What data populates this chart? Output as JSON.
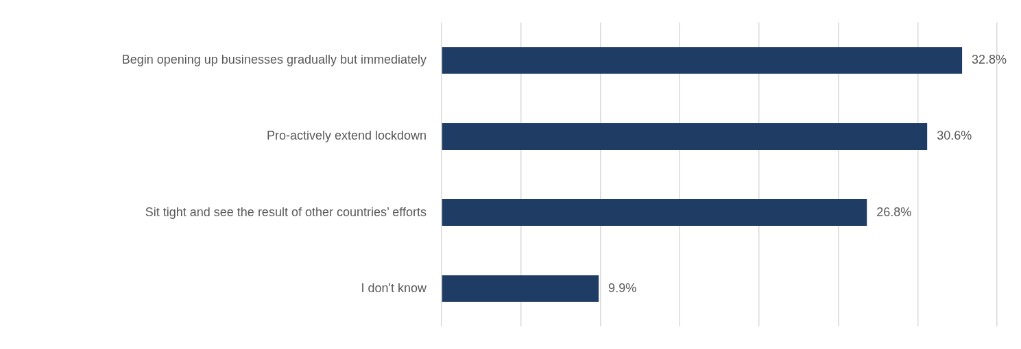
{
  "chart_data": {
    "type": "bar",
    "orientation": "horizontal",
    "categories": [
      "Begin opening up businesses gradually but immediately",
      "Pro-actively extend lockdown",
      "Sit tight and see the result of other countries’ efforts",
      "I don't know"
    ],
    "values": [
      32.8,
      30.6,
      26.8,
      9.9
    ],
    "value_labels": [
      "32.8%",
      "30.6%",
      "26.8%",
      "9.9%"
    ],
    "color": "#1f3d64",
    "xlim": [
      0,
      35
    ],
    "xticks": [
      {
        "value": 0,
        "label": null
      },
      {
        "value": 5,
        "label": null
      },
      {
        "value": 10,
        "label": null
      },
      {
        "value": 15,
        "label": null
      },
      {
        "value": 20,
        "label": null
      },
      {
        "value": 25,
        "label": null
      },
      {
        "value": 30,
        "label": null
      },
      {
        "value": 35,
        "label": null
      }
    ],
    "grid": "x",
    "tick_labels": "y",
    "legend": false
  }
}
